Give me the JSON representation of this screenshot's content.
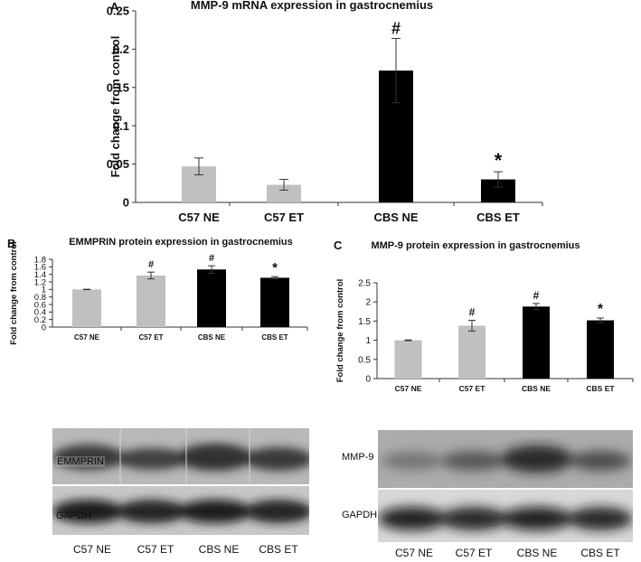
{
  "chart_data": [
    {
      "panel_letter": "A",
      "type": "bar",
      "title": "MMP-9 mRNA expression in  gastrocnemius",
      "ylabel": "Fold change from control",
      "xlabel": "",
      "categories": [
        "C57 NE",
        "C57 ET",
        "CBS NE",
        "CBS ET"
      ],
      "values": [
        0.047,
        0.023,
        0.172,
        0.03
      ],
      "errors": [
        0.011,
        0.007,
        0.042,
        0.01
      ],
      "markers": [
        "",
        "",
        "#",
        "*"
      ],
      "colors": [
        "#c0c0c0",
        "#c0c0c0",
        "#000000",
        "#000000"
      ],
      "ylim": [
        0,
        0.25
      ],
      "yticks": [
        0,
        0.05,
        0.1,
        0.15,
        0.2,
        0.25
      ],
      "ytick_labels": [
        "0",
        "0.05",
        "0.1",
        "0.15",
        "0.2",
        "0.25"
      ],
      "grid": false
    },
    {
      "panel_letter": "B",
      "type": "bar",
      "title": "EMMPRIN protein expression in  gastrocnemius",
      "ylabel": "Fold change from control",
      "xlabel": "",
      "categories": [
        "C57 NE",
        "C57 ET",
        "CBS NE",
        "CBS ET"
      ],
      "values": [
        1.0,
        1.37,
        1.53,
        1.31
      ],
      "errors": [
        0.005,
        0.09,
        0.1,
        0.03
      ],
      "markers": [
        "",
        "#",
        "#",
        "*"
      ],
      "colors": [
        "#c0c0c0",
        "#c0c0c0",
        "#000000",
        "#000000"
      ],
      "ylim": [
        0,
        1.8
      ],
      "yticks": [
        0,
        0.2,
        0.4,
        0.6,
        0.8,
        1,
        1.2,
        1.4,
        1.6,
        1.8
      ],
      "ytick_labels": [
        "0",
        "0.2",
        "0.4",
        "0.6",
        "0.8",
        "1",
        "1.2",
        "1.4",
        "1.6",
        "1.8"
      ],
      "grid": false
    },
    {
      "panel_letter": "C",
      "type": "bar",
      "title": "MMP-9 protein expression in  gastrocnemius",
      "ylabel": "Fold change from control",
      "xlabel": "",
      "categories": [
        "C57 NE",
        "C57 ET",
        "CBS NE",
        "CBS ET"
      ],
      "values": [
        1.0,
        1.38,
        1.88,
        1.52
      ],
      "errors": [
        0.01,
        0.14,
        0.08,
        0.06
      ],
      "markers": [
        "",
        "#",
        "#",
        "*"
      ],
      "colors": [
        "#c0c0c0",
        "#c0c0c0",
        "#000000",
        "#000000"
      ],
      "ylim": [
        0,
        2.5
      ],
      "yticks": [
        0,
        0.5,
        1,
        1.5,
        2,
        2.5
      ],
      "ytick_labels": [
        "0",
        "0.5",
        "1",
        "1.5",
        "2",
        "2.5"
      ],
      "grid": false
    }
  ],
  "blots": {
    "B": {
      "rows": [
        "EMMPRIN",
        "GAPDH"
      ],
      "lanes": [
        "C57 NE",
        "C57 ET",
        "CBS NE",
        "CBS ET"
      ]
    },
    "C": {
      "rows": [
        "MMP-9",
        "GAPDH"
      ],
      "lanes": [
        "C57 NE",
        "C57 ET",
        "CBS NE",
        "CBS ET"
      ]
    }
  }
}
